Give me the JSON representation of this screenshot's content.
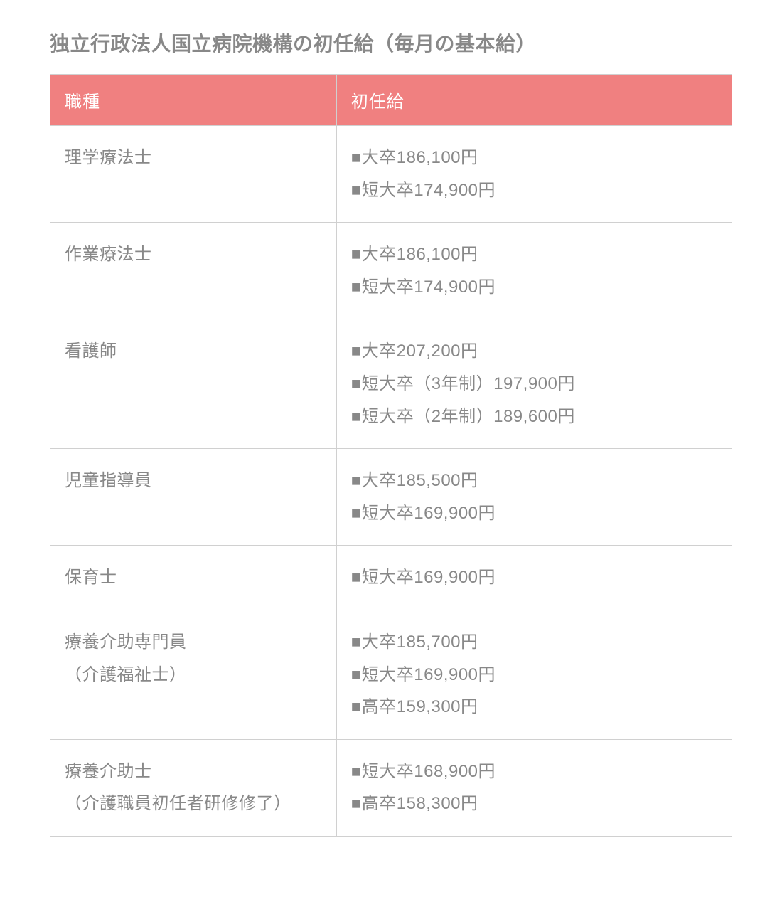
{
  "title": "独立行政法人国立病院機構の初任給（毎月の基本給）",
  "table": {
    "columns": [
      "職種",
      "初任給"
    ],
    "header_bg_color": "#f08080",
    "header_text_color": "#ffffff",
    "border_color": "#d0d0d0",
    "text_color": "#888888",
    "background_color": "#ffffff",
    "col_widths": [
      "42%",
      "58%"
    ],
    "font_size_pt": 18,
    "title_font_size_pt": 21,
    "bullet": "■",
    "rows": [
      {
        "job": "理学療法士",
        "salaries": [
          "■大卒186,100円",
          "■短大卒174,900円"
        ]
      },
      {
        "job": "作業療法士",
        "salaries": [
          "■大卒186,100円",
          "■短大卒174,900円"
        ]
      },
      {
        "job": "看護師",
        "salaries": [
          "■大卒207,200円",
          "■短大卒（3年制）197,900円",
          "■短大卒（2年制）189,600円"
        ]
      },
      {
        "job": "児童指導員",
        "salaries": [
          "■大卒185,500円",
          "■短大卒169,900円"
        ]
      },
      {
        "job": "保育士",
        "salaries": [
          "■短大卒169,900円"
        ]
      },
      {
        "job": "療養介助専門員\n（介護福祉士）",
        "salaries": [
          "■大卒185,700円",
          "■短大卒169,900円",
          "■高卒159,300円"
        ]
      },
      {
        "job": "療養介助士\n（介護職員初任者研修修了）",
        "salaries": [
          "■短大卒168,900円",
          "■高卒158,300円"
        ]
      }
    ]
  }
}
